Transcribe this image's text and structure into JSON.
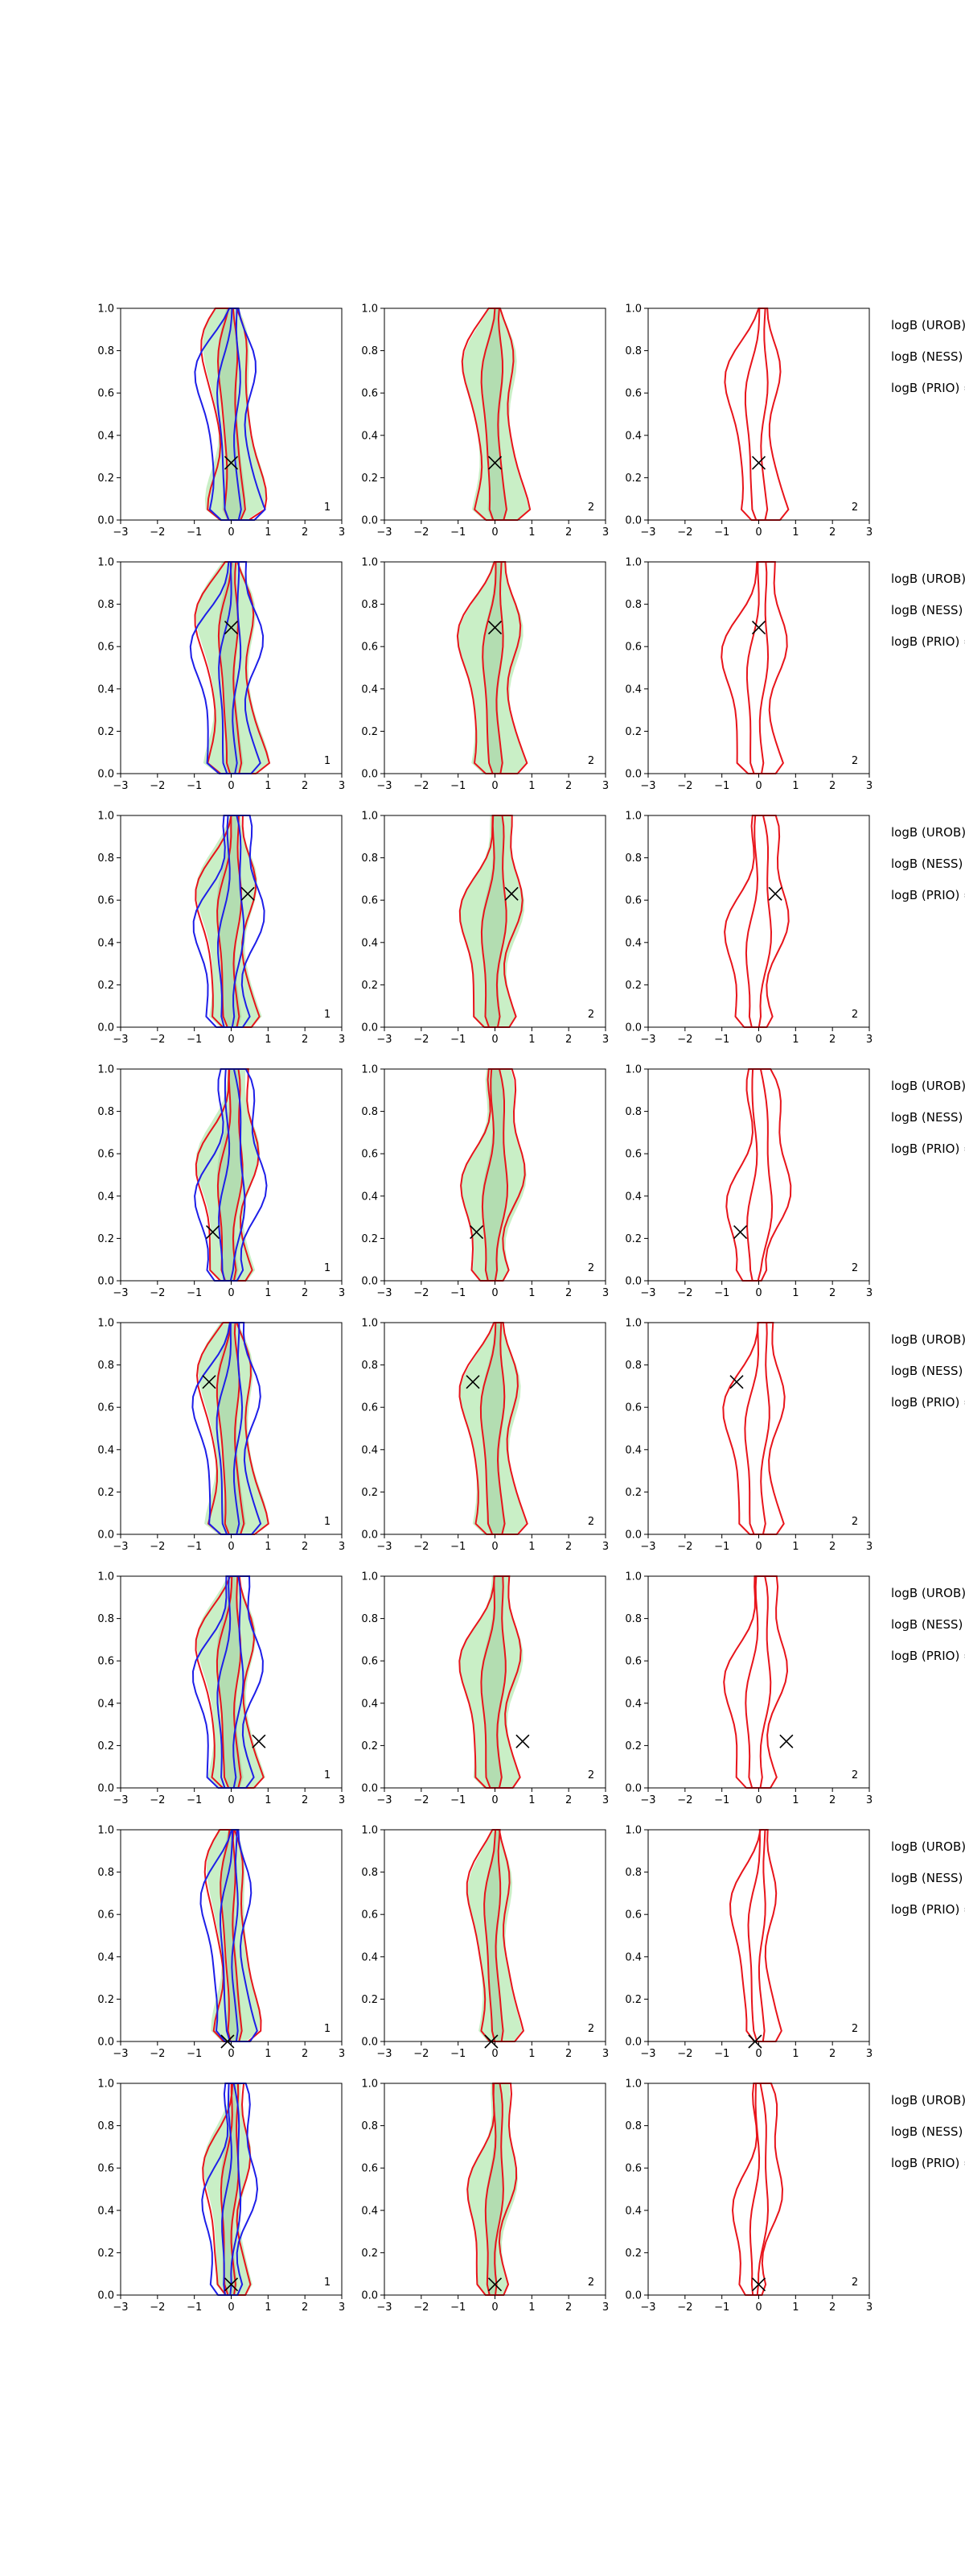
{
  "figure": {
    "columns": 3,
    "x_ticks": [
      "−3",
      "−2",
      "−1",
      "0",
      "1",
      "2",
      "3"
    ],
    "y_ticks": [
      "0.0",
      "0.2",
      "0.4",
      "0.6",
      "0.8",
      "1.0"
    ],
    "colors": {
      "fill": "#c9efc6",
      "inner_fill": "#aed8ab",
      "red": "#e8141b",
      "blue": "#1e1ee8",
      "marker": "#000000"
    }
  },
  "chart_data": [
    {
      "row": 1,
      "type": "contour",
      "xlim": [
        -3,
        3
      ],
      "ylim": [
        0,
        1
      ],
      "marker": {
        "x": 0.0,
        "y": 0.27
      },
      "panel_labels": [
        "1",
        "2",
        "2"
      ],
      "annotations": [
        "logB (UROB) =",
        "logB (NESS) =",
        "logB (PRIO) ="
      ]
    },
    {
      "row": 2,
      "type": "contour",
      "xlim": [
        -3,
        3
      ],
      "ylim": [
        0,
        1
      ],
      "marker": {
        "x": 0.0,
        "y": 0.69
      },
      "panel_labels": [
        "1",
        "2",
        "2"
      ],
      "annotations": [
        "logB (UROB) =",
        "logB (NESS) =",
        "logB (PRIO) ="
      ]
    },
    {
      "row": 3,
      "type": "contour",
      "xlim": [
        -3,
        3
      ],
      "ylim": [
        0,
        1
      ],
      "marker": {
        "x": 0.45,
        "y": 0.63
      },
      "panel_labels": [
        "1",
        "2",
        "2"
      ],
      "annotations": [
        "logB (UROB) =",
        "logB (NESS) =",
        "logB (PRIO) ="
      ]
    },
    {
      "row": 4,
      "type": "contour",
      "xlim": [
        -3,
        3
      ],
      "ylim": [
        0,
        1
      ],
      "marker": {
        "x": -0.5,
        "y": 0.23
      },
      "panel_labels": [
        "1",
        "2",
        "2"
      ],
      "annotations": [
        "logB (UROB) =",
        "logB (NESS) =",
        "logB (PRIO) ="
      ]
    },
    {
      "row": 5,
      "type": "contour",
      "xlim": [
        -3,
        3
      ],
      "ylim": [
        0,
        1
      ],
      "marker": {
        "x": -0.6,
        "y": 0.72
      },
      "panel_labels": [
        "1",
        "2",
        "2"
      ],
      "annotations": [
        "logB (UROB) =",
        "logB (NESS) =",
        "logB (PRIO) ="
      ]
    },
    {
      "row": 6,
      "type": "contour",
      "xlim": [
        -3,
        3
      ],
      "ylim": [
        0,
        1
      ],
      "marker": {
        "x": 0.75,
        "y": 0.22
      },
      "panel_labels": [
        "1",
        "2",
        "2"
      ],
      "annotations": [
        "logB (UROB) =",
        "logB (NESS) =",
        "logB (PRIO) ="
      ]
    },
    {
      "row": 7,
      "type": "contour",
      "xlim": [
        -3,
        3
      ],
      "ylim": [
        0,
        1
      ],
      "marker": {
        "x": -0.1,
        "y": 0.0
      },
      "panel_labels": [
        "1",
        "2",
        "2"
      ],
      "annotations": [
        "logB (UROB) =",
        "logB (NESS) =",
        "logB (PRIO) ="
      ]
    },
    {
      "row": 8,
      "type": "contour",
      "xlim": [
        -3,
        3
      ],
      "ylim": [
        0,
        1
      ],
      "marker": {
        "x": 0.0,
        "y": 0.05
      },
      "panel_labels": [
        "1",
        "2",
        "2"
      ],
      "annotations": [
        "logB (UROB) =",
        "logB (NESS) =",
        "logB (PRIO) ="
      ]
    }
  ]
}
